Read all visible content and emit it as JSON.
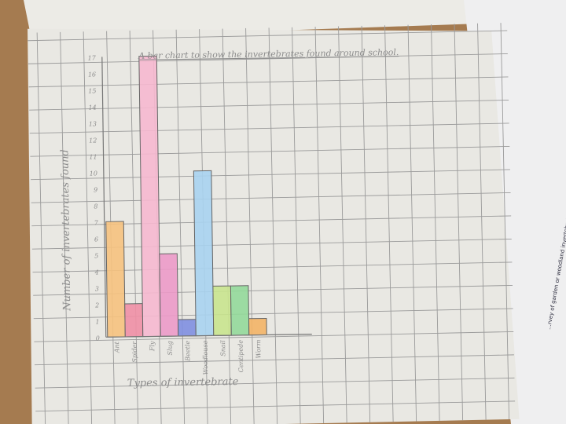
{
  "chart_data": {
    "type": "bar",
    "title": "A bar chart to show the invertebrates found around school.",
    "xlabel": "Types of invertebrate",
    "ylabel": "Number of invertebrates found",
    "categories": [
      "Ant",
      "Spider",
      "Fly",
      "Slug",
      "Beetle",
      "Woodlouse",
      "Snail",
      "Centipede",
      "Worm"
    ],
    "values": [
      7,
      2,
      17,
      5,
      1,
      10,
      3,
      3,
      1
    ],
    "colors": [
      "#f6c27e",
      "#ef8fa5",
      "#f6b8cf",
      "#ec9ac8",
      "#7f8fe0",
      "#a8d3ef",
      "#c9e48e",
      "#93d99a",
      "#f3b466"
    ],
    "ylim": [
      0,
      17
    ],
    "yticks": [
      0,
      1,
      2,
      3,
      4,
      5,
      6,
      7,
      8,
      9,
      10,
      11,
      12,
      13,
      14,
      15,
      16,
      17
    ],
    "grid": true,
    "legend": "none"
  },
  "background_page": {
    "side_text": "...rvey of garden or woodland invertebrates. ...follow government guidelines on ...conduct the survey, especially those which might"
  }
}
